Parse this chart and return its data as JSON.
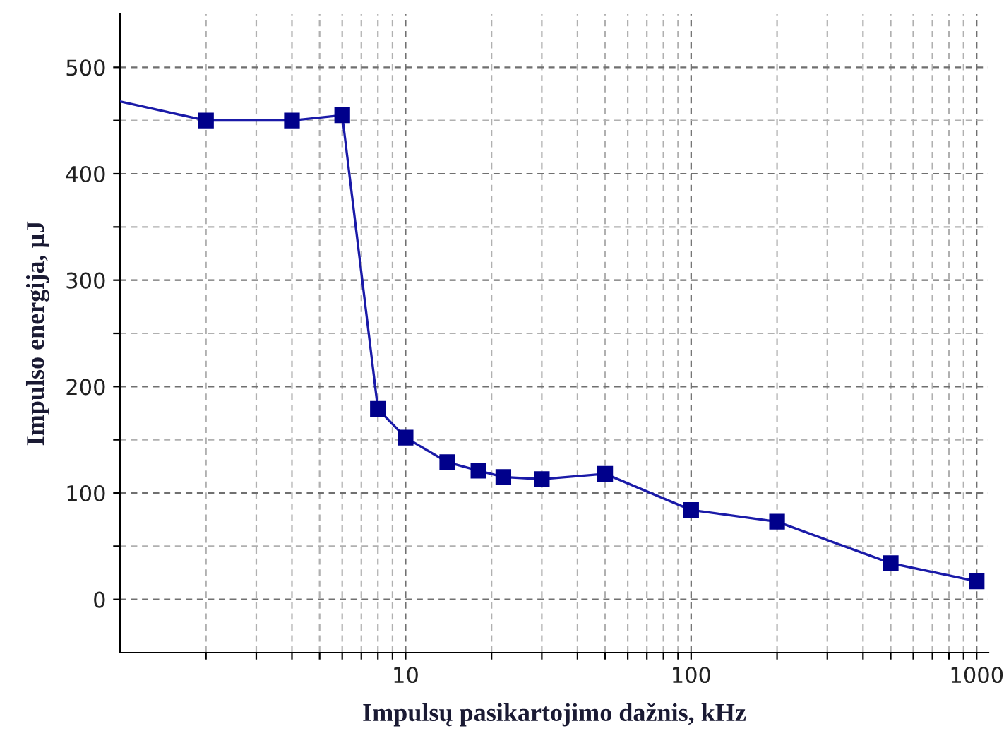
{
  "chart_data": {
    "type": "line",
    "xlabel": "Impulsų pasikartojimo dažnis, kHz",
    "ylabel": "Impulso energija, µJ",
    "log": "x",
    "x": [
      1,
      2,
      4,
      6,
      8,
      10,
      14,
      18,
      22,
      30,
      50,
      100,
      200,
      500,
      1000
    ],
    "series": [
      {
        "color": "#1a1aa8",
        "values": [
          468,
          450,
          450,
          455,
          179,
          152,
          129,
          121,
          115,
          113,
          118,
          84,
          73,
          34,
          17
        ]
      }
    ],
    "marker": "square",
    "line_style": "solid",
    "grid": true,
    "xlim": [
      1,
      1100
    ],
    "xticks": [
      {
        "value": 2,
        "label": null
      },
      {
        "value": 3,
        "label": null
      },
      {
        "value": 4,
        "label": null
      },
      {
        "value": 5,
        "label": null
      },
      {
        "value": 6,
        "label": null
      },
      {
        "value": 7,
        "label": null
      },
      {
        "value": 8,
        "label": null
      },
      {
        "value": 9,
        "label": null
      },
      10,
      {
        "value": 20,
        "label": null
      },
      {
        "value": 30,
        "label": null
      },
      {
        "value": 40,
        "label": null
      },
      {
        "value": 50,
        "label": null
      },
      {
        "value": 60,
        "label": null
      },
      {
        "value": 70,
        "label": null
      },
      {
        "value": 80,
        "label": null
      },
      {
        "value": 90,
        "label": null
      },
      100,
      {
        "value": 200,
        "label": null
      },
      {
        "value": 300,
        "label": null
      },
      {
        "value": 400,
        "label": null
      },
      {
        "value": 500,
        "label": null
      },
      {
        "value": 600,
        "label": null
      },
      {
        "value": 700,
        "label": null
      },
      {
        "value": 800,
        "label": null
      },
      {
        "value": 900,
        "label": null
      },
      1000
    ],
    "ylim": [
      -50,
      550
    ],
    "yticks": [
      0,
      {
        "value": 50,
        "label": null
      },
      100,
      {
        "value": 150,
        "label": null
      },
      200,
      {
        "value": 250,
        "label": null
      },
      300,
      {
        "value": 350,
        "label": null
      },
      400,
      {
        "value": 450,
        "label": null
      },
      500
    ]
  }
}
